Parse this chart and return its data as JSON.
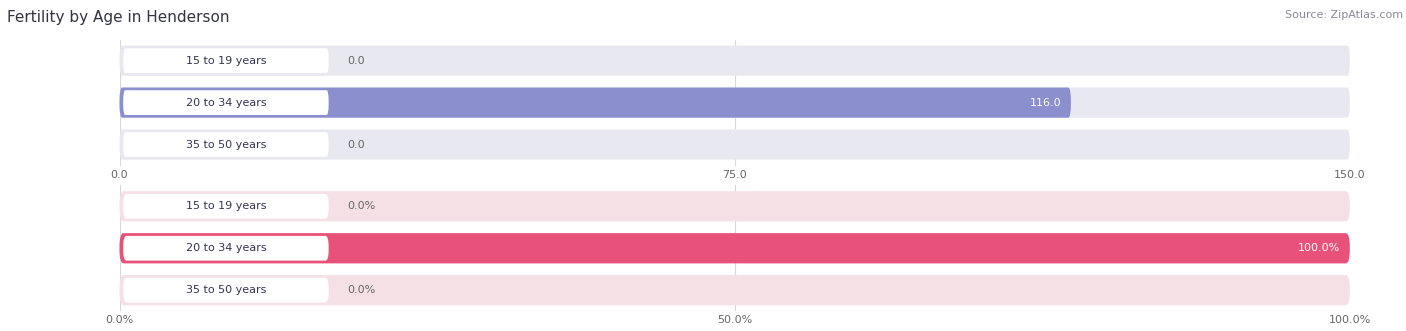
{
  "title": "Fertility by Age in Henderson",
  "source": "Source: ZipAtlas.com",
  "top_chart": {
    "categories": [
      "15 to 19 years",
      "20 to 34 years",
      "35 to 50 years"
    ],
    "values": [
      0.0,
      116.0,
      0.0
    ],
    "xlim": [
      0,
      150
    ],
    "xticks": [
      0.0,
      75.0,
      150.0
    ],
    "xtick_labels": [
      "0.0",
      "75.0",
      "150.0"
    ],
    "bar_color": "#8b8fce",
    "bar_bg_color": "#e8e8f0",
    "value_threshold": 100,
    "is_percent": false
  },
  "bottom_chart": {
    "categories": [
      "15 to 19 years",
      "20 to 34 years",
      "35 to 50 years"
    ],
    "values": [
      0.0,
      100.0,
      0.0
    ],
    "xlim": [
      0,
      100
    ],
    "xticks": [
      0.0,
      50.0,
      100.0
    ],
    "xtick_labels": [
      "0.0%",
      "50.0%",
      "100.0%"
    ],
    "bar_color": "#e8527a",
    "bar_bg_color": "#f5e0e6",
    "value_threshold": 80,
    "is_percent": true
  },
  "pill_bg_top": "#c8c8e8",
  "pill_bg_bottom": "#f0a0b8",
  "label_text_color": "#444466",
  "bar_height": 0.72,
  "background_color": "#ffffff",
  "title_color": "#333344",
  "title_fontsize": 11,
  "source_color": "#888899",
  "source_fontsize": 8,
  "bar_label_fontsize": 8,
  "tick_fontsize": 8,
  "grid_color": "#d8d8d8",
  "pill_text_color": "#333355"
}
